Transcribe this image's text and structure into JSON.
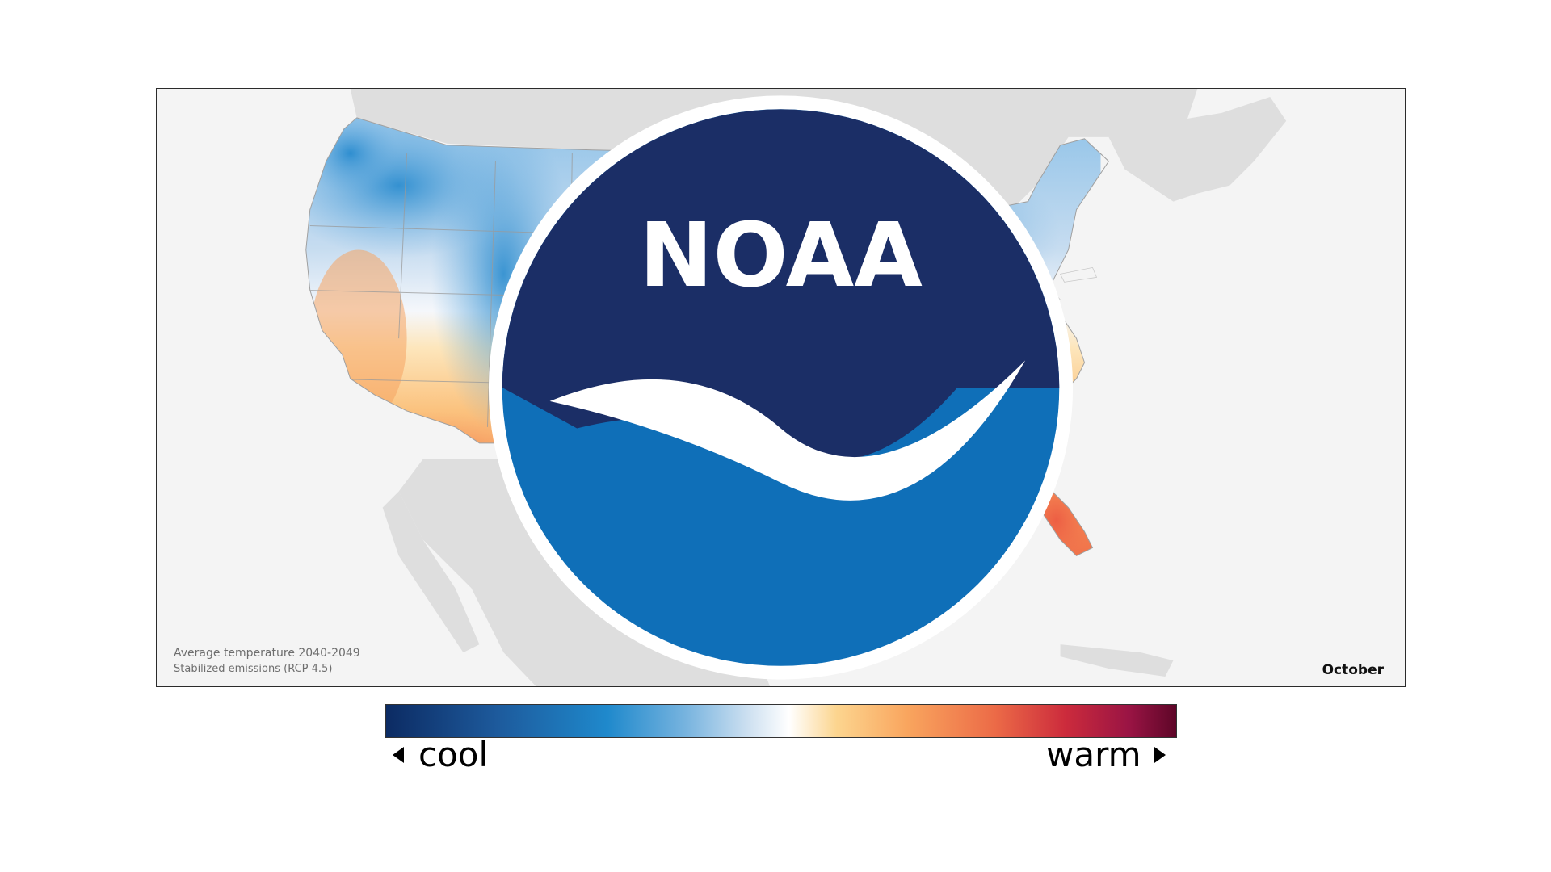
{
  "map": {
    "caption_line1": "Average temperature 2040-2049",
    "caption_line2": "Stabilized emissions (RCP 4.5)",
    "month": "October",
    "logo_text": "NOAA",
    "colors": {
      "cool_dark": "#0c2b63",
      "cool": "#1f89cc",
      "neutral": "#ffffff",
      "warm": "#f9a55e",
      "hot": "#ec6b47",
      "warm_dark": "#5e0628",
      "land_outside": "#dedede",
      "ocean": "#f4f4f4"
    }
  },
  "legend": {
    "cool_label": "cool",
    "warm_label": "warm"
  }
}
